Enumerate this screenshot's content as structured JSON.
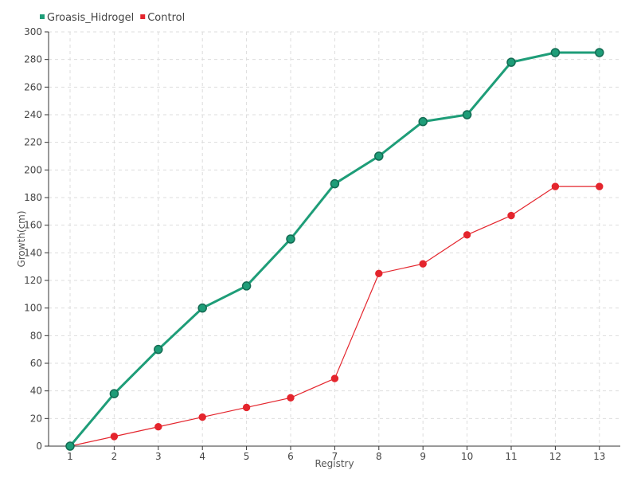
{
  "chart_data": {
    "type": "line",
    "title": "",
    "xlabel": "Registry",
    "ylabel": "Growth(cm)",
    "x": [
      1,
      2,
      3,
      4,
      5,
      6,
      7,
      8,
      9,
      10,
      11,
      12,
      13
    ],
    "xticks": [
      "1",
      "2",
      "3",
      "4",
      "5",
      "6",
      "7",
      "8",
      "9",
      "10",
      "11",
      "12",
      "13"
    ],
    "ylim": [
      0,
      300
    ],
    "yticks": [
      0,
      20,
      40,
      60,
      80,
      100,
      120,
      140,
      160,
      180,
      200,
      220,
      240,
      260,
      280,
      300
    ],
    "grid": true,
    "legend_position": "top-left",
    "series": [
      {
        "name": "Groasis_Hidrogel",
        "color": "#1e9d78",
        "values": [
          0,
          38,
          70,
          100,
          116,
          150,
          190,
          210,
          235,
          240,
          278,
          285,
          285
        ]
      },
      {
        "name": "Control",
        "color": "#e4252d",
        "values": [
          0,
          7,
          14,
          21,
          28,
          35,
          49,
          125,
          132,
          153,
          167,
          188,
          188
        ]
      }
    ]
  }
}
